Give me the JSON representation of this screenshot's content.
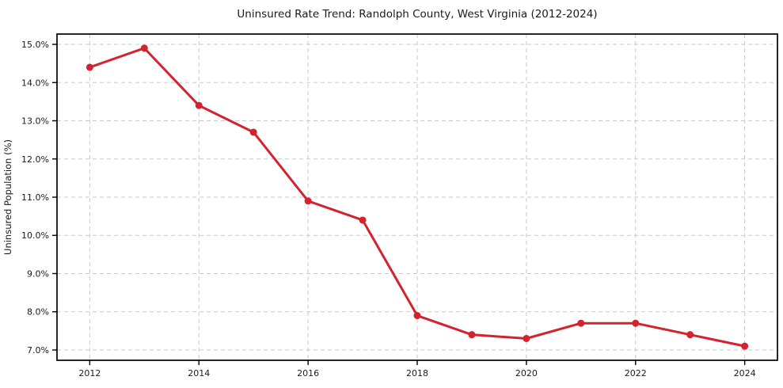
{
  "chart_data": {
    "type": "line",
    "title": "Uninsured Rate Trend: Randolph County, West Virginia (2012-2024)",
    "xlabel": "",
    "ylabel": "Uninsured Population (%)",
    "x": [
      2012,
      2013,
      2014,
      2015,
      2016,
      2017,
      2018,
      2019,
      2020,
      2021,
      2022,
      2023,
      2024
    ],
    "series": [
      {
        "name": "Uninsured Rate",
        "values": [
          14.4,
          14.9,
          13.4,
          12.7,
          10.9,
          10.4,
          7.9,
          7.4,
          7.3,
          7.7,
          7.7,
          7.4,
          7.1
        ]
      }
    ],
    "xlim": [
      2011.4,
      2024.6
    ],
    "ylim": [
      6.73,
      15.27
    ],
    "xticks": [
      2012,
      2014,
      2016,
      2018,
      2020,
      2022,
      2024
    ],
    "xtick_labels": [
      "2012",
      "2014",
      "2016",
      "2018",
      "2020",
      "2022",
      "2024"
    ],
    "yticks": [
      7,
      8,
      9,
      10,
      11,
      12,
      13,
      14,
      15
    ],
    "ytick_labels": [
      "7.0%",
      "8.0%",
      "9.0%",
      "10.0%",
      "11.0%",
      "12.0%",
      "13.0%",
      "14.0%",
      "15.0%"
    ],
    "grid": true,
    "legend": "none",
    "colors": {
      "line": "#d2232e",
      "marker": "#d2232e",
      "grid": "#c9c9c9",
      "frame": "#000000",
      "text": "#1a1a1a",
      "background": "#ffffff"
    }
  }
}
